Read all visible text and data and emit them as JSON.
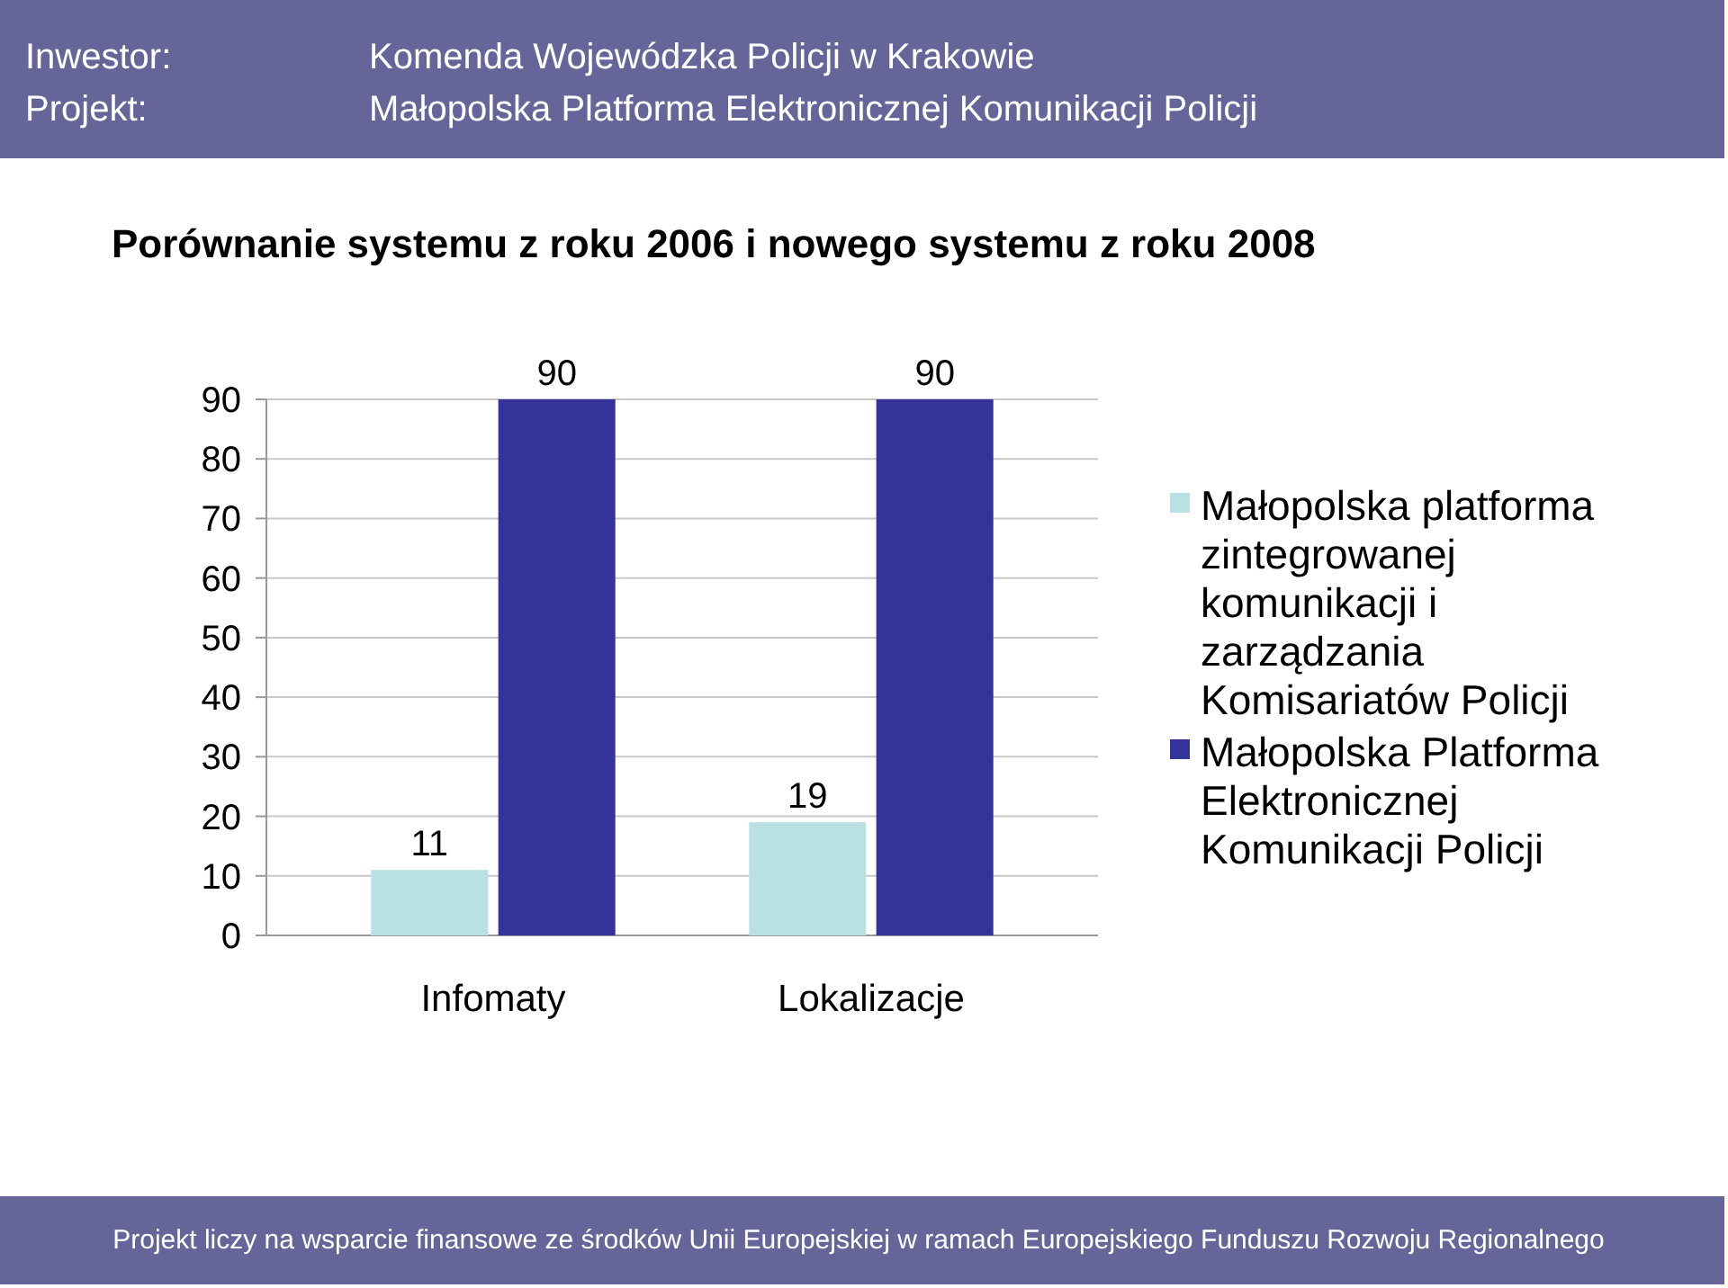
{
  "chart_data": {
    "type": "bar",
    "title": "Porównanie systemu z roku 2006 i nowego systemu z roku 2008",
    "categories": [
      "Infomaty",
      "Lokalizacje"
    ],
    "series": [
      {
        "name": "Małopolska platforma zintegrowanej komunikacji i zarządzania Komisariatów Policji",
        "color": "#b9e1e4",
        "values": [
          11,
          19
        ]
      },
      {
        "name": "Małopolska Platforma Elektronicznej Komunikacji Policji",
        "color": "#333399",
        "values": [
          90,
          90
        ]
      }
    ],
    "ylim": [
      0,
      90
    ],
    "yticks": [
      0,
      10,
      20,
      30,
      40,
      50,
      60,
      70,
      80,
      90
    ],
    "grid": "y",
    "legend": "right",
    "data_labels": true,
    "annotations": [
      "Inwestor:",
      "Komenda Wojewódzka Policji w Krakowie",
      "Projekt:",
      "Małopolska Platforma Elektronicznej Komunikacji Policji",
      "Projekt liczy na wsparcie finansowe ze środków Unii Europejskiej w ramach Europejskiego Funduszu Rozwoju Regionalnego"
    ]
  }
}
